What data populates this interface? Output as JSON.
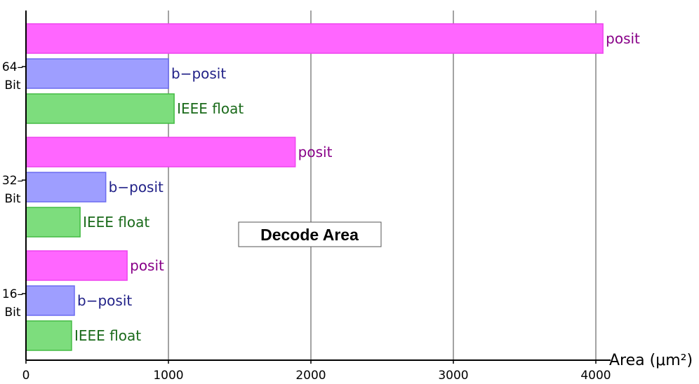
{
  "chart_data": {
    "type": "bar",
    "orientation": "horizontal",
    "title": "Decode Area",
    "xlabel": "Area (μm²)",
    "xlim": [
      0,
      4150
    ],
    "xticks": [
      0,
      1000,
      2000,
      3000,
      4000
    ],
    "grid": true,
    "groups": [
      {
        "label": [
          "64–",
          "Bit"
        ],
        "bars": [
          {
            "name": "posit",
            "value": 4050
          },
          {
            "name": "b−posit",
            "value": 1000
          },
          {
            "name": "IEEE float",
            "value": 1040
          }
        ]
      },
      {
        "label": [
          "32–",
          "Bit"
        ],
        "bars": [
          {
            "name": "posit",
            "value": 1890
          },
          {
            "name": "b−posit",
            "value": 560
          },
          {
            "name": "IEEE float",
            "value": 380
          }
        ]
      },
      {
        "label": [
          "16–",
          "Bit"
        ],
        "bars": [
          {
            "name": "posit",
            "value": 710
          },
          {
            "name": "b−posit",
            "value": 340
          },
          {
            "name": "IEEE float",
            "value": 320
          }
        ]
      }
    ],
    "colors": {
      "posit": {
        "fill": "#ff66ff",
        "stroke": "#ee44ee",
        "text": "#880088"
      },
      "b−posit": {
        "fill": "#9e9eff",
        "stroke": "#6c6cf0",
        "text": "#222288"
      },
      "IEEE float": {
        "fill": "#7ddd7d",
        "stroke": "#44bb44",
        "text": "#1a6a1a"
      }
    }
  }
}
